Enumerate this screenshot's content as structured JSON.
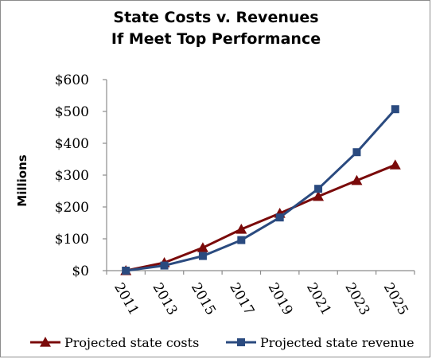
{
  "chart_data": {
    "type": "line",
    "title_line1": "State Costs v. Revenues",
    "title_line2": "If Meet Top Performance",
    "xlabel": "",
    "ylabel": "Millions",
    "x": [
      "2011",
      "2013",
      "2015",
      "2017",
      "2019",
      "2021",
      "2023",
      "2025"
    ],
    "y_ticks": [
      "$0",
      "$100",
      "$200",
      "$300",
      "$400",
      "$500",
      "$600"
    ],
    "ylim": [
      0,
      600
    ],
    "grid": false,
    "legend_position": "bottom",
    "series": [
      {
        "name": "Projected state costs",
        "marker": "triangle",
        "color": "#7a0a0a",
        "values": [
          0,
          25,
          72,
          130,
          180,
          233,
          283,
          332
        ]
      },
      {
        "name": "Projected state revenue",
        "marker": "square",
        "color": "#2a4a7f",
        "values": [
          0,
          16,
          46,
          96,
          167,
          257,
          372,
          507
        ]
      }
    ]
  }
}
